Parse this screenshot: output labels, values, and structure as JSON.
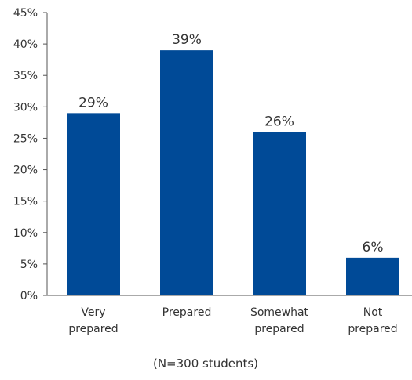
{
  "chart_data": {
    "type": "bar",
    "categories": [
      [
        "Very",
        "prepared"
      ],
      [
        "Prepared"
      ],
      [
        "Somewhat",
        "prepared"
      ],
      [
        "Not",
        "prepared"
      ]
    ],
    "values": [
      29,
      39,
      26,
      6
    ],
    "data_labels": [
      "29%",
      "39%",
      "26%",
      "6%"
    ],
    "y_ticks": [
      "0%",
      "5%",
      "10%",
      "15%",
      "20%",
      "25%",
      "30%",
      "35%",
      "40%",
      "45%"
    ],
    "ylim": [
      0,
      45
    ],
    "y_step": 5,
    "grid": false,
    "legend": "none",
    "bar_color": "#004a97",
    "note": "(N=300 students)"
  }
}
